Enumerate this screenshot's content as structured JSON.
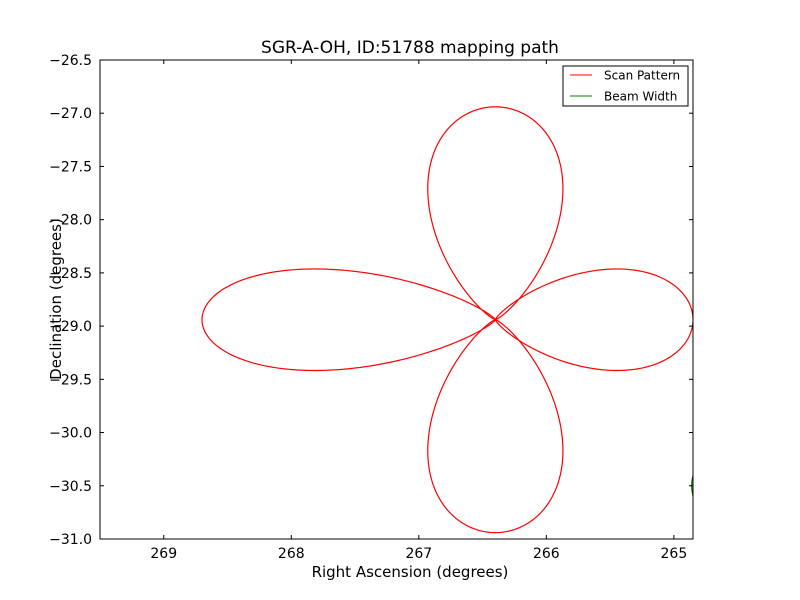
{
  "chart_data": {
    "type": "line",
    "title": "SGR-A-OH, ID:51788 mapping path",
    "xlabel": "Right Ascension (degrees)",
    "ylabel": "Declination (degrees)",
    "xlim": [
      269.5,
      264.85
    ],
    "ylim": [
      -31.0,
      -26.5
    ],
    "x_inverted": true,
    "xticks": [
      269,
      268,
      267,
      266,
      265
    ],
    "xtick_labels": [
      "269",
      "268",
      "267",
      "266",
      "265"
    ],
    "yticks": [
      -26.5,
      -27.0,
      -27.5,
      -28.0,
      -28.5,
      -29.0,
      -29.5,
      -30.0,
      -30.5,
      -31.0
    ],
    "ytick_labels": [
      "−26.5",
      "−27.0",
      "−27.5",
      "−28.0",
      "−28.5",
      "−29.0",
      "−29.5",
      "−30.0",
      "−30.5",
      "−31.0"
    ],
    "grid": false,
    "legend_position": "top-right",
    "series": [
      {
        "name": "Scan Pattern",
        "color": "#ff0000",
        "shape": "four-petal rosette",
        "center": {
          "ra": 266.4,
          "dec": -28.94
        },
        "petals": [
          {
            "direction": "north",
            "tip": {
              "ra": 266.4,
              "dec": -26.94
            },
            "widest": {
              "ra_min": 266.99,
              "ra_max": 265.79,
              "dec": -27.7
            }
          },
          {
            "direction": "south",
            "tip": {
              "ra": 266.4,
              "dec": -30.94
            },
            "widest": {
              "ra_min": 266.99,
              "ra_max": 265.79,
              "dec": -30.15
            }
          },
          {
            "direction": "east",
            "tip": {
              "ra": 268.7,
              "dec": -28.94
            },
            "widest": {
              "ra": 267.75,
              "dec_max": -28.4,
              "dec_min": -29.48
            }
          },
          {
            "direction": "west",
            "tip": {
              "ra": 264.85,
              "dec": -28.94
            },
            "widest": {
              "ra": 265.0,
              "dec_max": -28.4,
              "dec_min": -29.48
            }
          }
        ]
      },
      {
        "name": "Beam Width",
        "color": "#008000",
        "shape": "circle",
        "center": {
          "ra": 264.56,
          "dec": -30.5
        },
        "radius_dec": 0.36
      }
    ]
  }
}
